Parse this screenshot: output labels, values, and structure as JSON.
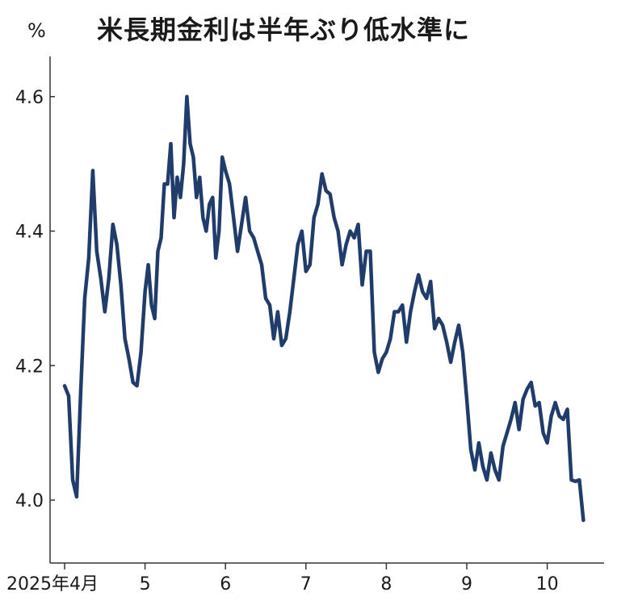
{
  "chart_data": {
    "type": "line",
    "title": "米長期金利は半年ぶり低水準に",
    "unit": "%",
    "ylim": [
      3.91,
      4.66
    ],
    "yticks": [
      4.0,
      4.2,
      4.4,
      4.6
    ],
    "ytick_labels": [
      "4.0",
      "4.2",
      "4.4",
      "4.6"
    ],
    "xlim": [
      0,
      6.72
    ],
    "xticks": [
      0,
      1,
      2,
      3,
      4,
      5,
      6
    ],
    "xtick_labels": [
      "2025年4月",
      "5",
      "6",
      "7",
      "8",
      "9",
      "10"
    ],
    "grid": false,
    "legend": "none",
    "line_color": "#1f3c6b",
    "series": [
      {
        "x": [
          0.0,
          0.05,
          0.1,
          0.15,
          0.2,
          0.25,
          0.3,
          0.35,
          0.4,
          0.45,
          0.5,
          0.55,
          0.6,
          0.65,
          0.7,
          0.75,
          0.8,
          0.85,
          0.9,
          0.95,
          1.0,
          1.04,
          1.08,
          1.12,
          1.16,
          1.2,
          1.24,
          1.28,
          1.32,
          1.36,
          1.4,
          1.44,
          1.48,
          1.52,
          1.56,
          1.6,
          1.64,
          1.68,
          1.72,
          1.76,
          1.8,
          1.84,
          1.88,
          1.92,
          1.96,
          2.0,
          2.05,
          2.1,
          2.15,
          2.2,
          2.25,
          2.3,
          2.35,
          2.4,
          2.45,
          2.5,
          2.55,
          2.6,
          2.65,
          2.7,
          2.75,
          2.8,
          2.85,
          2.9,
          2.95,
          3.0,
          3.05,
          3.1,
          3.15,
          3.2,
          3.25,
          3.3,
          3.35,
          3.4,
          3.45,
          3.5,
          3.55,
          3.6,
          3.65,
          3.7,
          3.75,
          3.8,
          3.85,
          3.9,
          3.95,
          4.0,
          4.05,
          4.1,
          4.15,
          4.2,
          4.25,
          4.3,
          4.35,
          4.4,
          4.45,
          4.5,
          4.55,
          4.6,
          4.65,
          4.7,
          4.75,
          4.8,
          4.85,
          4.9,
          4.95,
          5.0,
          5.05,
          5.1,
          5.15,
          5.2,
          5.25,
          5.3,
          5.35,
          5.4,
          5.45,
          5.5,
          5.55,
          5.6,
          5.65,
          5.7,
          5.75,
          5.8,
          5.85,
          5.9,
          5.95,
          6.0,
          6.05,
          6.1,
          6.15,
          6.2,
          6.25,
          6.3,
          6.35,
          6.4,
          6.45
        ],
        "values": [
          4.17,
          4.155,
          4.03,
          4.005,
          4.16,
          4.3,
          4.36,
          4.49,
          4.37,
          4.33,
          4.28,
          4.33,
          4.41,
          4.38,
          4.32,
          4.24,
          4.21,
          4.175,
          4.17,
          4.22,
          4.31,
          4.35,
          4.29,
          4.27,
          4.37,
          4.39,
          4.47,
          4.47,
          4.53,
          4.42,
          4.48,
          4.45,
          4.5,
          4.6,
          4.53,
          4.51,
          4.45,
          4.48,
          4.42,
          4.4,
          4.44,
          4.45,
          4.36,
          4.4,
          4.51,
          4.49,
          4.47,
          4.42,
          4.37,
          4.41,
          4.45,
          4.4,
          4.39,
          4.37,
          4.35,
          4.3,
          4.29,
          4.24,
          4.28,
          4.23,
          4.24,
          4.28,
          4.33,
          4.38,
          4.4,
          4.34,
          4.35,
          4.42,
          4.44,
          4.485,
          4.46,
          4.455,
          4.42,
          4.4,
          4.35,
          4.38,
          4.4,
          4.39,
          4.41,
          4.32,
          4.37,
          4.37,
          4.22,
          4.19,
          4.21,
          4.22,
          4.24,
          4.28,
          4.28,
          4.29,
          4.235,
          4.28,
          4.31,
          4.335,
          4.31,
          4.3,
          4.325,
          4.255,
          4.27,
          4.26,
          4.235,
          4.205,
          4.235,
          4.26,
          4.22,
          4.15,
          4.075,
          4.045,
          4.085,
          4.05,
          4.03,
          4.07,
          4.045,
          4.03,
          4.08,
          4.1,
          4.12,
          4.145,
          4.105,
          4.15,
          4.165,
          4.175,
          4.14,
          4.145,
          4.1,
          4.085,
          4.125,
          4.145,
          4.125,
          4.12,
          4.135,
          4.03,
          4.028,
          4.03,
          3.97
        ]
      }
    ]
  }
}
